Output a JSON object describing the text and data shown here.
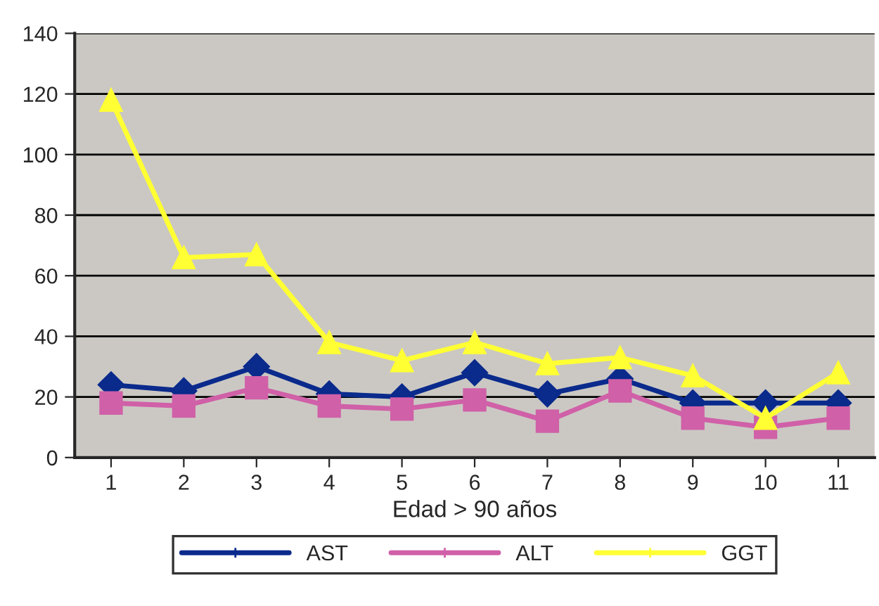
{
  "chart_data": {
    "type": "line",
    "xlabel": "Edad > 90 años",
    "categories": [
      "1",
      "2",
      "3",
      "4",
      "5",
      "6",
      "7",
      "8",
      "9",
      "10",
      "11"
    ],
    "series": [
      {
        "name": "AST",
        "color": "#0a2a8c",
        "marker": "diamond",
        "values": [
          24,
          22,
          30,
          21,
          20,
          28,
          21,
          26,
          18,
          18,
          18
        ]
      },
      {
        "name": "ALT",
        "color": "#d060a8",
        "marker": "square",
        "values": [
          18,
          17,
          23,
          17,
          16,
          19,
          12,
          22,
          13,
          10,
          13
        ]
      },
      {
        "name": "GGT",
        "color": "#ffff33",
        "marker": "triangle",
        "values": [
          118,
          66,
          67,
          38,
          32,
          38,
          31,
          33,
          27,
          13,
          28
        ]
      }
    ],
    "ylim": [
      0,
      140
    ],
    "yticks": [
      0,
      20,
      40,
      60,
      80,
      100,
      120,
      140
    ],
    "grid": "y",
    "legend": "bottom",
    "line_style": "solid"
  }
}
